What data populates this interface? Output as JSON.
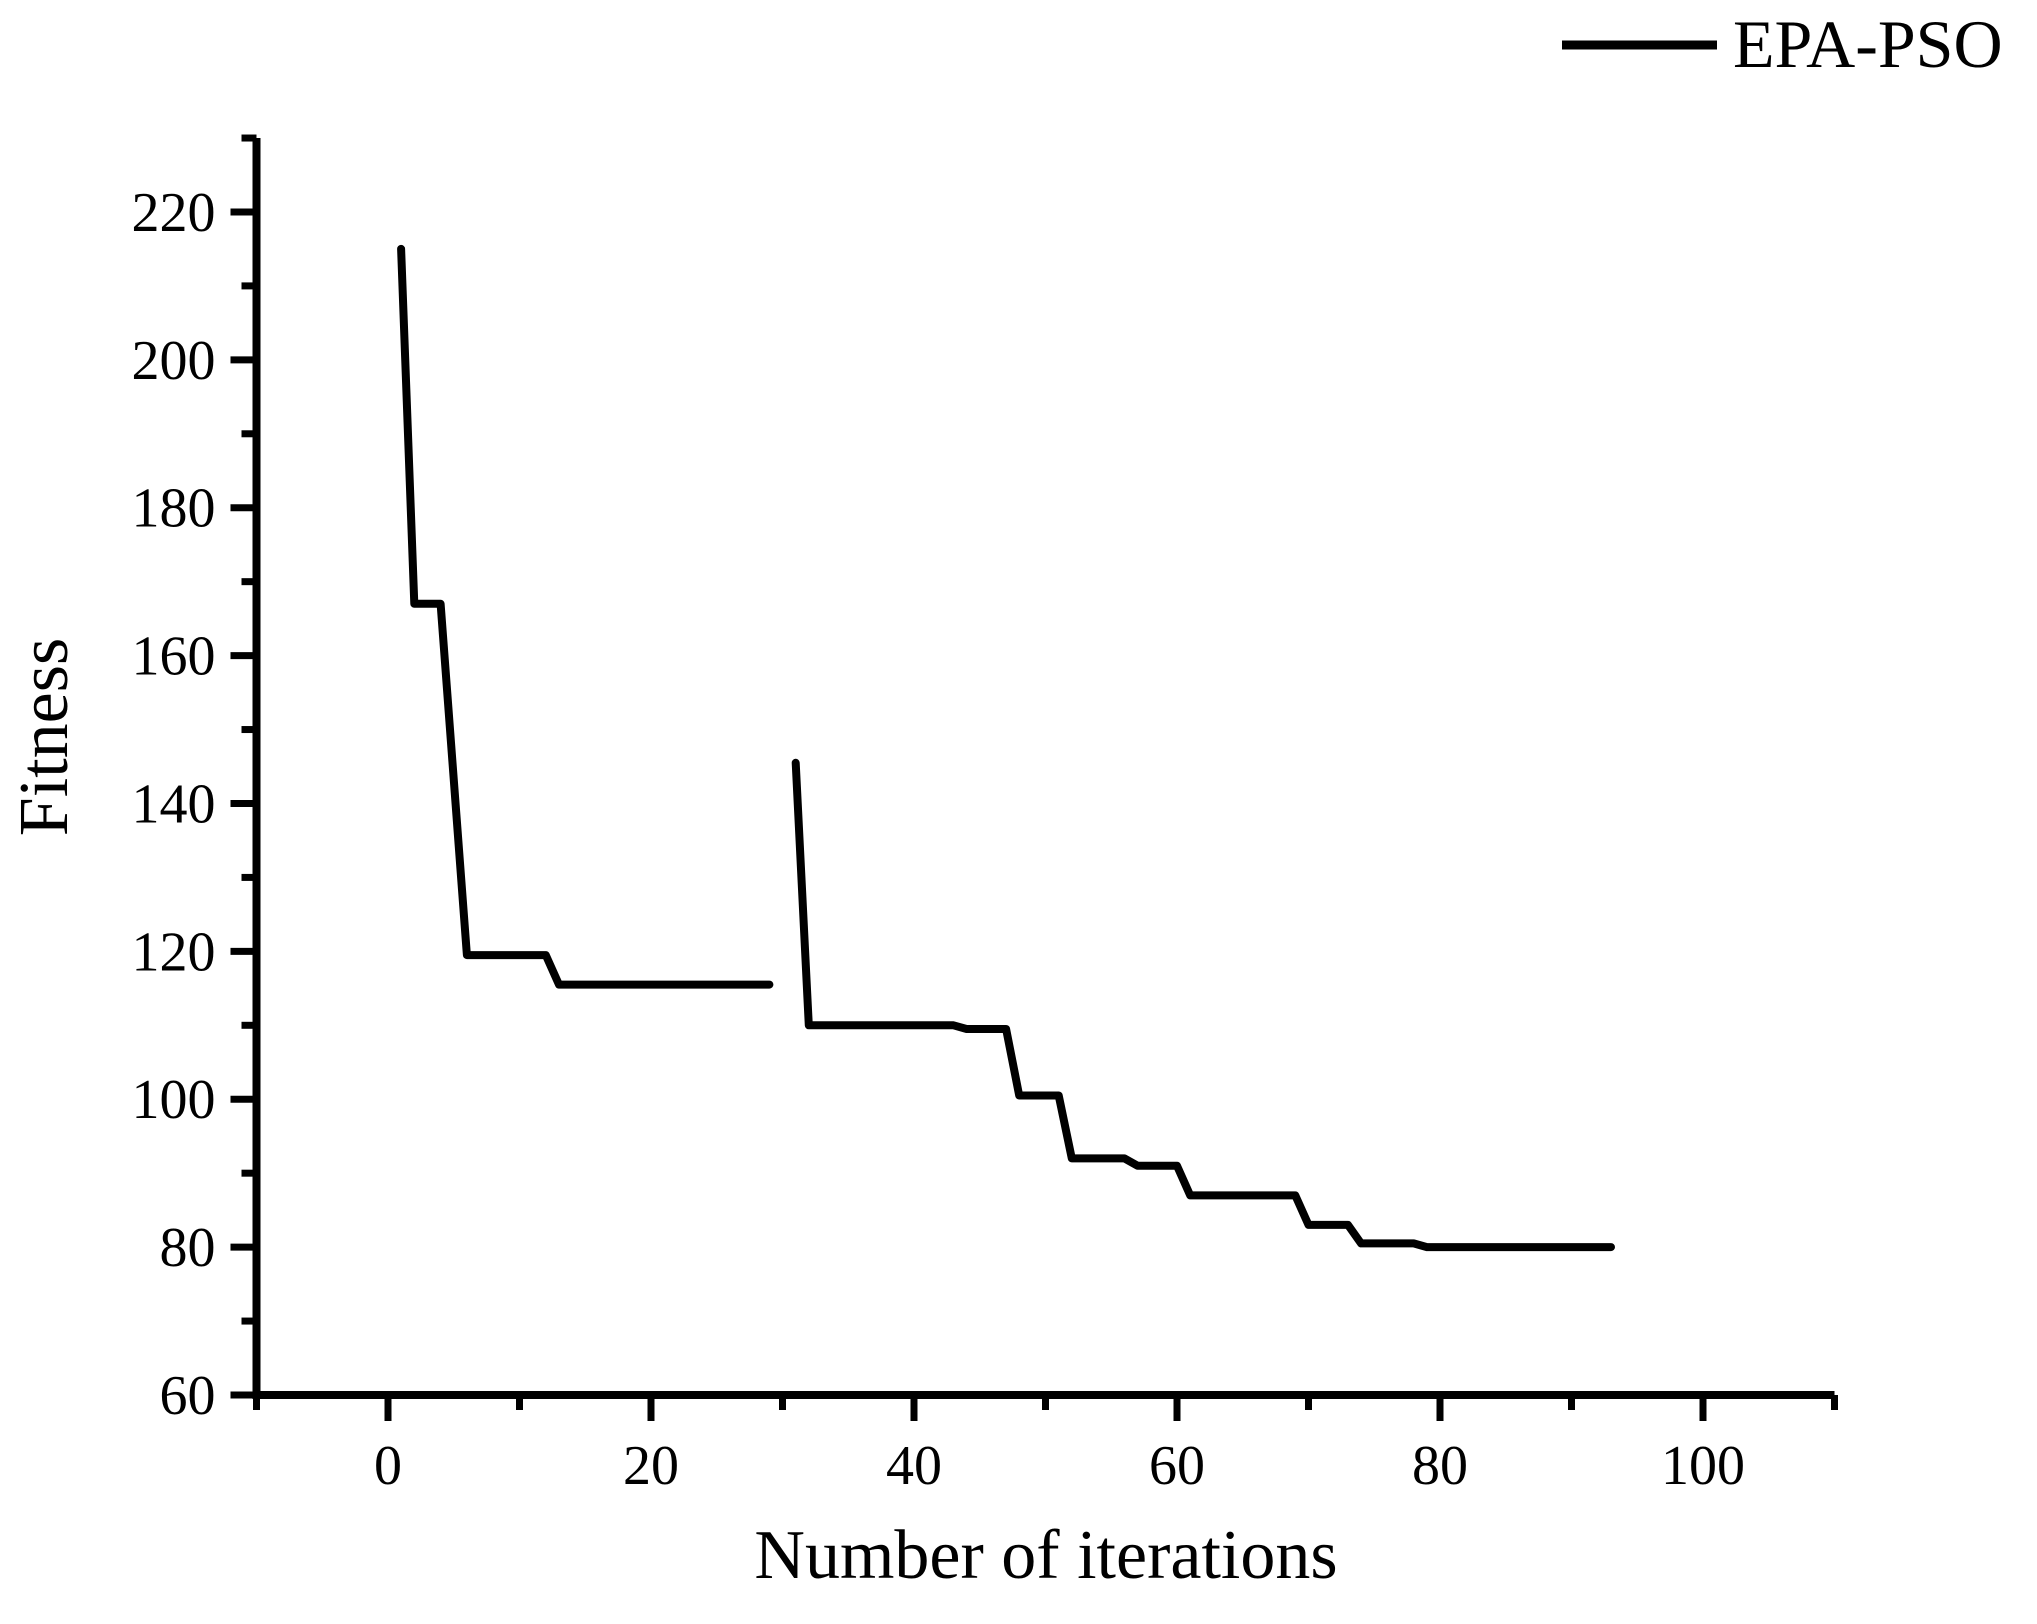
{
  "figure": {
    "background_color": "#ffffff",
    "foreground_color": "#000000"
  },
  "legend": {
    "label": "EPA-PSO",
    "position": "top-right",
    "swatch": "solid-black-line"
  },
  "chart_data": {
    "type": "line",
    "title": "",
    "xlabel": "Number of iterations",
    "ylabel": "Fitness",
    "xlim": [
      -10,
      110
    ],
    "ylim": [
      60,
      230
    ],
    "grid": false,
    "legend_position": "top-right",
    "x_major_ticks": [
      0,
      20,
      40,
      60,
      80,
      100
    ],
    "x_minor_ticks": [
      -10,
      10,
      30,
      50,
      70,
      90,
      110
    ],
    "y_major_ticks": [
      60,
      80,
      100,
      120,
      140,
      160,
      180,
      200,
      220
    ],
    "y_minor_ticks": [
      70,
      90,
      110,
      130,
      150,
      170,
      190,
      210,
      230
    ],
    "x_tick_labels": [
      "0",
      "20",
      "40",
      "60",
      "80",
      "100"
    ],
    "y_tick_labels": [
      "60",
      "80",
      "100",
      "120",
      "140",
      "160",
      "180",
      "200",
      "220"
    ],
    "series": [
      {
        "name": "EPA-PSO",
        "color": "#000000",
        "line_width": 8,
        "segments": [
          [
            [
              1,
              215
            ],
            [
              2,
              167
            ],
            [
              4,
              167
            ],
            [
              6,
              119.5
            ],
            [
              12,
              119.5
            ],
            [
              13,
              115.5
            ],
            [
              29,
              115.5
            ]
          ],
          [
            [
              31,
              145.5
            ],
            [
              32,
              110
            ],
            [
              43,
              110
            ],
            [
              44,
              109.5
            ],
            [
              47,
              109.5
            ],
            [
              48,
              100.5
            ],
            [
              51,
              100.5
            ],
            [
              52,
              92
            ],
            [
              56,
              92
            ],
            [
              57,
              91
            ],
            [
              60,
              91
            ],
            [
              61,
              87
            ],
            [
              69,
              87
            ],
            [
              70,
              83
            ],
            [
              73,
              83
            ],
            [
              74,
              80.5
            ],
            [
              78,
              80.5
            ],
            [
              79,
              80
            ],
            [
              93,
              80
            ]
          ]
        ]
      }
    ]
  }
}
